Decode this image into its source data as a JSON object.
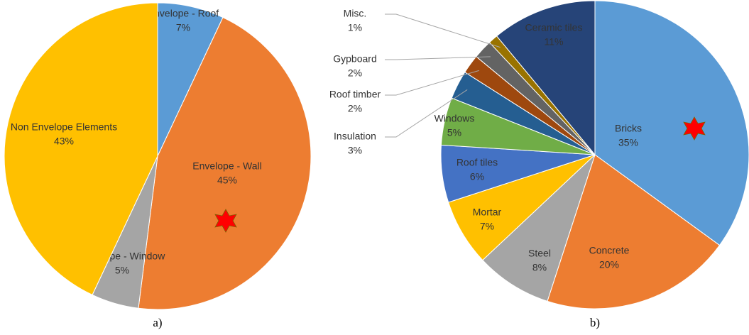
{
  "chart_data": [
    {
      "type": "pie",
      "caption": "a)",
      "categories": [
        "Envelope - Roof",
        "Envelope - Wall",
        "Envelope - Window",
        "Non Envelope Elements"
      ],
      "values": [
        7,
        45,
        5,
        43
      ],
      "value_labels": [
        "7%",
        "45%",
        "5%",
        "43%"
      ],
      "colors": [
        "#5b9bd5",
        "#ed7d31",
        "#a5a5a5",
        "#ffc000"
      ]
    },
    {
      "type": "pie",
      "caption": "b)",
      "categories": [
        "Bricks",
        "Concrete",
        "Steel",
        "Mortar",
        "Roof tiles",
        "Windows",
        "Insulation",
        "Roof timber",
        "Gypboard",
        "Misc.",
        "Ceramic tiles"
      ],
      "values": [
        35,
        20,
        8,
        7,
        6,
        5,
        3,
        2,
        2,
        1,
        11
      ],
      "value_labels": [
        "35%",
        "20%",
        "8%",
        "7%",
        "6%",
        "5%",
        "3%",
        "2%",
        "2%",
        "1%",
        "11%"
      ],
      "colors": [
        "#5b9bd5",
        "#ed7d31",
        "#a5a5a5",
        "#ffc000",
        "#4472c4",
        "#70ad47",
        "#255e91",
        "#9e480e",
        "#636363",
        "#997300",
        "#264478"
      ]
    }
  ]
}
